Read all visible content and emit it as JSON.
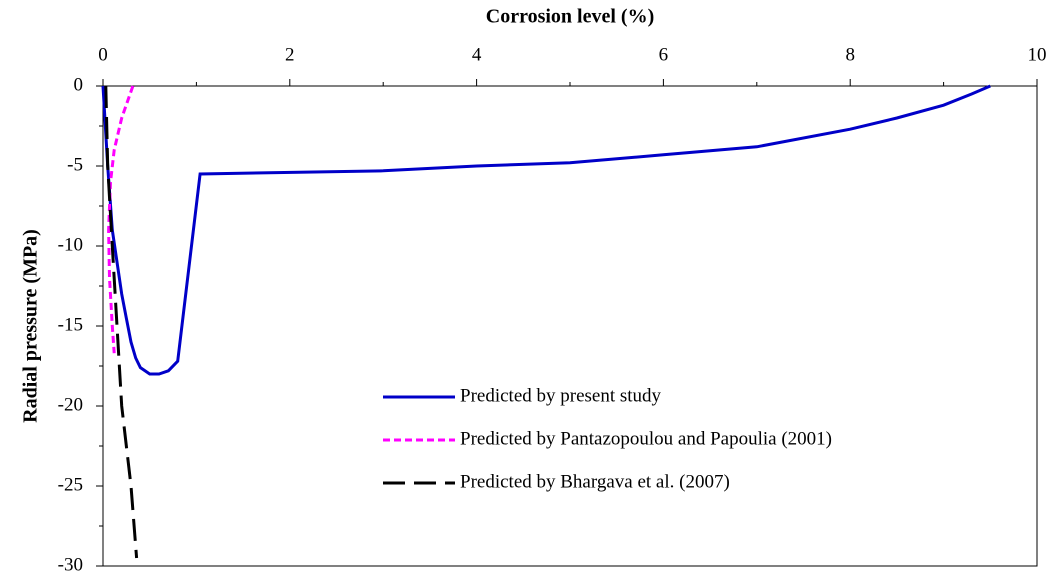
{
  "chart_data": {
    "type": "line",
    "x_label": "Corrosion level (%)",
    "y_label": "Radial pressure (MPa)",
    "xlim": [
      0,
      10
    ],
    "xticks": [
      0,
      2,
      4,
      6,
      8,
      10
    ],
    "xminorticks": [
      1,
      3,
      5,
      7,
      9
    ],
    "ylim": [
      -30,
      0
    ],
    "yticks": [
      0,
      -5,
      -10,
      -15,
      -20,
      -25,
      -30
    ],
    "yminorticks": [
      -2.5,
      -7.5,
      -12.5,
      -17.5,
      -22.5,
      -27.5
    ],
    "x_axis_position": "top",
    "legend": "lower-right",
    "series": [
      {
        "name": "Predicted by present study",
        "color": "#0000c8",
        "dash": "solid",
        "x": [
          0,
          0.05,
          0.1,
          0.15,
          0.2,
          0.25,
          0.3,
          0.35,
          0.4,
          0.5,
          0.6,
          0.7,
          0.8,
          1.04,
          3,
          4,
          5,
          6,
          7,
          8,
          8.5,
          9,
          9.3,
          9.5
        ],
        "values": [
          0,
          -5,
          -9,
          -11,
          -13,
          -14.5,
          -16,
          -17,
          -17.6,
          -18,
          -18,
          -17.8,
          -17.2,
          -5.5,
          -5.3,
          -5,
          -4.8,
          -4.3,
          -3.8,
          -2.7,
          -2,
          -1.2,
          -0.5,
          0
        ]
      },
      {
        "name": "Predicted by Pantazopoulou and Papoulia (2001)",
        "color": "#ff00ff",
        "dash": "short",
        "x": [
          0.32,
          0.2,
          0.12,
          0.08,
          0.06,
          0.07,
          0.1,
          0.12
        ],
        "values": [
          0,
          -2,
          -4,
          -6,
          -9,
          -12,
          -15,
          -16.7
        ]
      },
      {
        "name": "Predicted by Bhargava et al. (2007)",
        "color": "#000000",
        "dash": "long",
        "x": [
          0.03,
          0.05,
          0.1,
          0.15,
          0.2,
          0.3,
          0.36
        ],
        "values": [
          0,
          -5,
          -10,
          -15,
          -20,
          -25,
          -29.5
        ]
      }
    ]
  }
}
